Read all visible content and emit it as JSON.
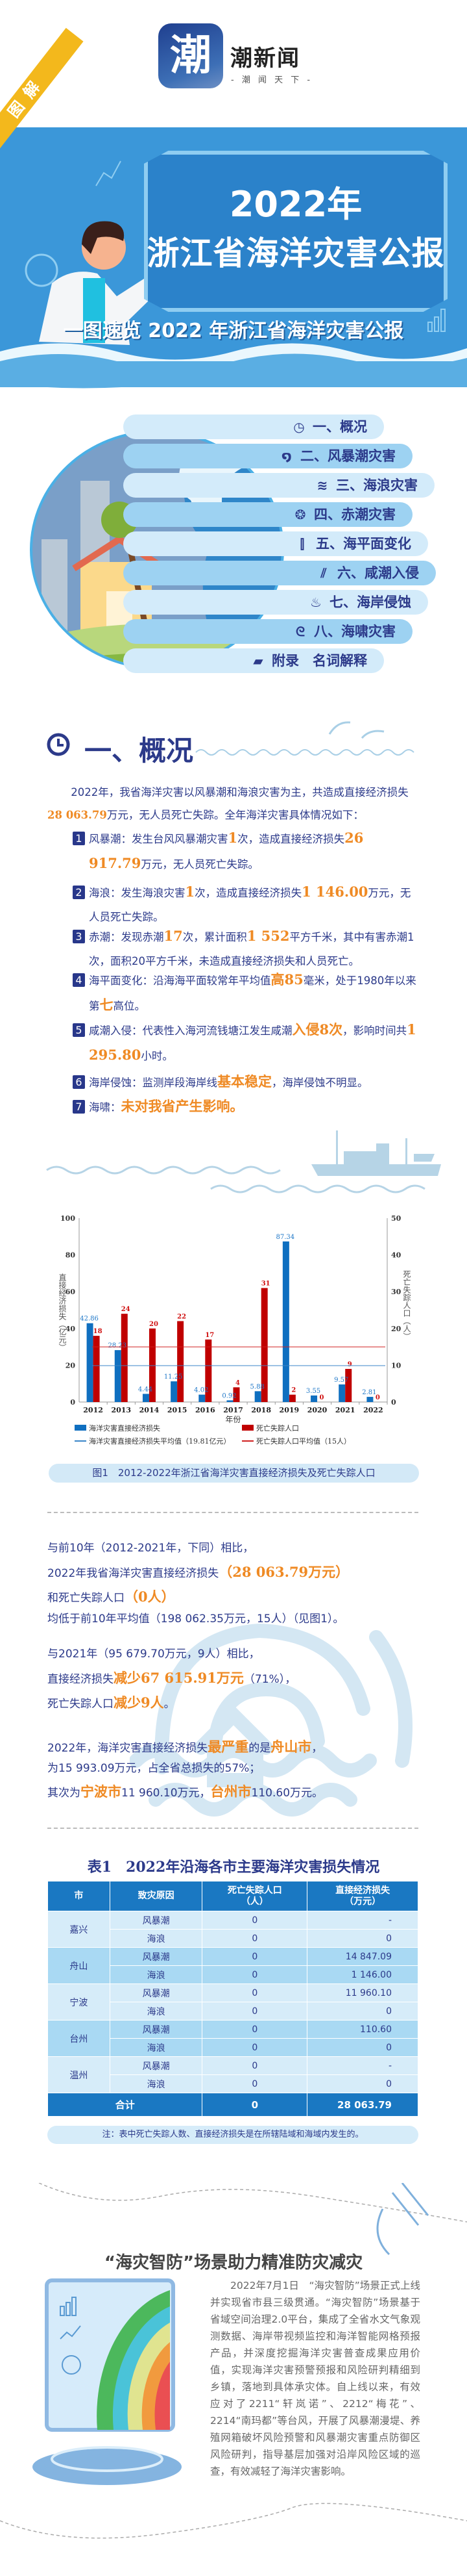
{
  "header": {
    "logo_char": "潮",
    "brand": "潮新闻",
    "slogan": "- 潮 闻 天 下 -",
    "badge": "图解",
    "title_line1": "2022年",
    "title_line2": "浙江省海洋灾害公报",
    "subtitle": "一图速览 2022 年浙江省海洋灾害公报"
  },
  "toc": {
    "items": [
      {
        "icon": "clock-icon",
        "glyph": "◷",
        "label": "一、概况"
      },
      {
        "icon": "typhoon-icon",
        "glyph": "໑",
        "label": "二、风暴潮灾害"
      },
      {
        "icon": "wave-icon",
        "glyph": "≋",
        "label": "三、海浪灾害"
      },
      {
        "icon": "red-tide-icon",
        "glyph": "❂",
        "label": "四、赤潮灾害"
      },
      {
        "icon": "ruler-icon",
        "glyph": "⫿",
        "label": "五、海平面变化"
      },
      {
        "icon": "saltwater-icon",
        "glyph": "⫽",
        "label": "六、咸潮入侵"
      },
      {
        "icon": "erosion-icon",
        "glyph": "♨",
        "label": "七、海岸侵蚀"
      },
      {
        "icon": "tsunami-icon",
        "glyph": "ᘓ",
        "label": "八、海啸灾害"
      },
      {
        "icon": "book-icon",
        "glyph": "▰",
        "label": "附录　名词解释"
      }
    ]
  },
  "overview": {
    "heading": "一、概况",
    "intro": [
      {
        "t": "2022年，我省海洋灾害以风暴潮和海浪灾害为主，共造成直接经济损失",
        "hl": false
      },
      {
        "t": "28 063.79",
        "hl": true
      },
      {
        "t": "万元，无人员死亡失踪。全年海洋灾害具体情况如下：",
        "hl": false
      }
    ],
    "items": [
      {
        "num": "1",
        "parts": [
          {
            "t": "风暴潮：发生台风风暴潮灾害",
            "hl": false
          },
          {
            "t": "1",
            "hl": true
          },
          {
            "t": "次，造成直接经济损失",
            "hl": false
          },
          {
            "t": "26 917.79",
            "hl": true
          },
          {
            "t": "万元，无人员死亡失踪。",
            "hl": false
          }
        ]
      },
      {
        "num": "2",
        "parts": [
          {
            "t": "海浪：发生海浪灾害",
            "hl": false
          },
          {
            "t": "1",
            "hl": true
          },
          {
            "t": "次，造成直接经济损失",
            "hl": false
          },
          {
            "t": "1 146.00",
            "hl": true
          },
          {
            "t": "万元，无人员死亡失踪。",
            "hl": false
          }
        ]
      },
      {
        "num": "3",
        "parts": [
          {
            "t": "赤潮：发现赤潮",
            "hl": false
          },
          {
            "t": "17",
            "hl": true
          },
          {
            "t": "次，累计面积",
            "hl": false
          },
          {
            "t": "1 552",
            "hl": true
          },
          {
            "t": "平方千米，其中有害赤潮1次，面积20平方千米，未造成直接经济损失和人员死亡。",
            "hl": false
          }
        ]
      },
      {
        "num": "4",
        "parts": [
          {
            "t": "海平面变化：沿海海平面较常年平均值",
            "hl": false
          },
          {
            "t": "高85",
            "hl": true
          },
          {
            "t": "毫米，处于1980年以来第",
            "hl": false
          },
          {
            "t": "七",
            "hl": true
          },
          {
            "t": "高位。",
            "hl": false
          }
        ]
      },
      {
        "num": "5",
        "parts": [
          {
            "t": "咸潮入侵：代表性入海河流钱塘江发生咸潮",
            "hl": false
          },
          {
            "t": "入侵8次",
            "hl": true
          },
          {
            "t": "，影响时间共",
            "hl": false
          },
          {
            "t": "1 295.80",
            "hl": true
          },
          {
            "t": "小时。",
            "hl": false
          }
        ]
      },
      {
        "num": "6",
        "parts": [
          {
            "t": "海岸侵蚀：监测岸段海岸线",
            "hl": false
          },
          {
            "t": "基本稳定",
            "hl": true
          },
          {
            "t": "，海岸侵蚀不明显。",
            "hl": false
          }
        ]
      },
      {
        "num": "7",
        "parts": [
          {
            "t": "海啸：",
            "hl": false
          },
          {
            "t": "未对我省产生影响。",
            "hl": true
          }
        ]
      }
    ]
  },
  "chart_data": {
    "type": "bar",
    "title": "图1　2012-2022年浙江省海洋灾害直接经济损失及死亡失踪人口",
    "categories": [
      "2012",
      "2013",
      "2014",
      "2015",
      "2016",
      "2017",
      "2018",
      "2019",
      "2020",
      "2021",
      "2022"
    ],
    "xlabel": "年份",
    "ylabel": "直接经济损失（亿元）",
    "ylabel_right": "死亡失踪人口（人）",
    "ylim": [
      0,
      100
    ],
    "ylim_right": [
      0,
      50
    ],
    "yticks": [
      "0",
      "20",
      "40",
      "60",
      "80",
      "100"
    ],
    "yticks_right": [
      "0",
      "10",
      "20",
      "30",
      "40",
      "50"
    ],
    "series": [
      {
        "name": "海洋灾害直接经济损失",
        "axis": "left",
        "color": "#0f6fc0",
        "values": [
          42.86,
          28.23,
          4.44,
          11.25,
          4.02,
          0.92,
          5.88,
          87.34,
          3.55,
          9.57,
          2.81
        ]
      },
      {
        "name": "死亡失踪人口",
        "axis": "right",
        "color": "#c00000",
        "values": [
          18,
          24,
          20,
          22,
          17,
          4,
          31,
          2,
          0,
          9,
          0
        ]
      }
    ],
    "averages": [
      {
        "name": "海洋灾害直接经济损失平均值（19.81亿元）",
        "axis": "left",
        "value": 19.81,
        "color": "#3b86c8"
      },
      {
        "name": "死亡失踪人口平均值（15人）",
        "axis": "right",
        "value": 15,
        "color": "#d02020"
      }
    ],
    "legend": "bottom",
    "grid": false
  },
  "comparison": {
    "block1": [
      [
        {
          "t": "与前10年（2012-2021年，下同）相比，",
          "hl": false
        }
      ],
      [
        {
          "t": "2022年我省海洋灾害直接经济损失",
          "hl": false
        },
        {
          "t": "（28 063.79万元）",
          "hl": true
        }
      ],
      [
        {
          "t": "和死亡失踪人口",
          "hl": false
        },
        {
          "t": "（0人）",
          "hl": true
        }
      ],
      [
        {
          "t": "均低于前10年平均值（198 062.35万元，15人）（见图1）。",
          "hl": false
        }
      ]
    ],
    "block2": [
      [
        {
          "t": "与2021年（95 679.70万元，9人）相比，",
          "hl": false
        }
      ],
      [
        {
          "t": "直接经济损失",
          "hl": false
        },
        {
          "t": "减少67 615.91万元",
          "hl": true
        },
        {
          "t": "（71%），",
          "hl": false
        }
      ],
      [
        {
          "t": "死亡失踪人口",
          "hl": false
        },
        {
          "t": "减少9人",
          "hl": true
        },
        {
          "t": "。",
          "hl": false
        }
      ]
    ],
    "block3": [
      [
        {
          "t": "2022年，海洋灾害直接经济损失",
          "hl": false
        },
        {
          "t": "最严重",
          "hl": true
        },
        {
          "t": "的是",
          "hl": false
        },
        {
          "t": "舟山市",
          "hl": true
        },
        {
          "t": "，",
          "hl": false
        }
      ],
      [
        {
          "t": "为15 993.09万元，占全省总损失的57%；",
          "hl": false
        }
      ],
      [
        {
          "t": "其次为",
          "hl": false
        },
        {
          "t": "宁波市",
          "hl": true
        },
        {
          "t": "11 960.10万元，",
          "hl": false
        },
        {
          "t": "台州市",
          "hl": true
        },
        {
          "t": "110.60万元。",
          "hl": false
        }
      ]
    ]
  },
  "table": {
    "title": "表1　2022年沿海各市主要海洋灾害损失情况",
    "headers": [
      "市",
      "致灾原因",
      "死亡失踪人口\n（人）",
      "直接经济损失\n（万元）"
    ],
    "cities": [
      {
        "city": "嘉兴",
        "rows": [
          {
            "cause": "风暴潮",
            "deaths": "0",
            "loss": "-"
          },
          {
            "cause": "海浪",
            "deaths": "0",
            "loss": "0"
          }
        ]
      },
      {
        "city": "舟山",
        "rows": [
          {
            "cause": "风暴潮",
            "deaths": "0",
            "loss": "14 847.09"
          },
          {
            "cause": "海浪",
            "deaths": "0",
            "loss": "1 146.00"
          }
        ]
      },
      {
        "city": "宁波",
        "rows": [
          {
            "cause": "风暴潮",
            "deaths": "0",
            "loss": "11 960.10"
          },
          {
            "cause": "海浪",
            "deaths": "0",
            "loss": "0"
          }
        ]
      },
      {
        "city": "台州",
        "rows": [
          {
            "cause": "风暴潮",
            "deaths": "0",
            "loss": "110.60"
          },
          {
            "cause": "海浪",
            "deaths": "0",
            "loss": "0"
          }
        ]
      },
      {
        "city": "温州",
        "rows": [
          {
            "cause": "风暴潮",
            "deaths": "0",
            "loss": "-"
          },
          {
            "cause": "海浪",
            "deaths": "0",
            "loss": "0"
          }
        ]
      }
    ],
    "total": {
      "label": "合计",
      "deaths": "0",
      "loss": "28 063.79"
    },
    "note": "注：表中死亡失踪人数、直接经济损失是在所辖陆域和海域内发生的。"
  },
  "feature": {
    "title": "“海灾智防”场景助力精准防灾减灾",
    "body": "2022年7月1日　“海灾智防”场景正式上线并实现省市县三级贯通。“海灾智防”场景基于省域空间治理2.0平台，集成了全省水文气象观测数据、海岸带视频监控和海洋智能网格预报产品，并深度挖掘海洋灾害普查成果应用价值，实现海洋灾害预警预报和风险研判精细到乡镇，落地到具体承灾体。自上线以来，有效应对了2211“轩岚诺”、2212“梅花”、2214“南玛都”等台风，开展了风暴潮漫堤、养殖网箱破坏风险预警和风暴潮灾害重点防御区风险研判，指导基层加强对沿岸风险区域的巡查，有效减轻了海洋灾害影响。"
  }
}
